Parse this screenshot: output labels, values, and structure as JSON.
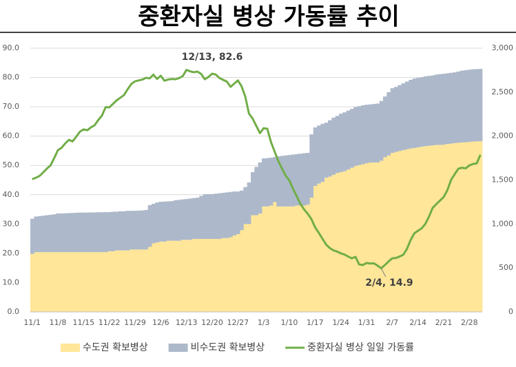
{
  "chart_data": {
    "type": "combo",
    "title": "중환자실 병상 가동률 추이",
    "stacked": true,
    "grid": true,
    "legend": "bottom",
    "categories": [
      "11/1",
      null,
      null,
      null,
      null,
      null,
      null,
      "11/8",
      null,
      null,
      null,
      null,
      null,
      null,
      "11/15",
      null,
      null,
      null,
      null,
      null,
      null,
      "11/22",
      null,
      null,
      null,
      null,
      null,
      null,
      "11/29",
      null,
      null,
      null,
      null,
      null,
      null,
      "12/6",
      null,
      null,
      null,
      null,
      null,
      null,
      "12/13",
      null,
      null,
      null,
      null,
      null,
      null,
      "12/20",
      null,
      null,
      null,
      null,
      null,
      null,
      "12/27",
      null,
      null,
      null,
      null,
      null,
      null,
      "1/3",
      null,
      null,
      null,
      null,
      null,
      null,
      "1/10",
      null,
      null,
      null,
      null,
      null,
      null,
      "1/17",
      null,
      null,
      null,
      null,
      null,
      null,
      "1/24",
      null,
      null,
      null,
      null,
      null,
      null,
      "1/31",
      null,
      null,
      null,
      null,
      null,
      null,
      "2/7",
      null,
      null,
      null,
      null,
      null,
      null,
      "2/14",
      null,
      null,
      null,
      null,
      null,
      null,
      "2/21",
      null,
      null,
      null,
      null,
      null,
      null,
      "2/28",
      null,
      null,
      null
    ],
    "series": [
      {
        "name": "수도권 확보병상",
        "type": "bar",
        "axis": "y2",
        "color": "#ffe699",
        "values": [
          660,
          680,
          680,
          680,
          680,
          680,
          680,
          680,
          680,
          680,
          680,
          680,
          680,
          680,
          680,
          680,
          680,
          680,
          680,
          680,
          680,
          690,
          690,
          700,
          700,
          700,
          700,
          710,
          710,
          710,
          710,
          710,
          740,
          780,
          790,
          800,
          800,
          810,
          810,
          810,
          810,
          820,
          820,
          820,
          830,
          830,
          830,
          830,
          830,
          830,
          830,
          830,
          840,
          840,
          850,
          870,
          885,
          930,
          1000,
          1000,
          1100,
          1100,
          1120,
          1200,
          1200,
          1210,
          1250,
          1200,
          1200,
          1200,
          1200,
          1200,
          1210,
          1210,
          1210,
          1220,
          1300,
          1433,
          1460,
          1480,
          1527,
          1540,
          1560,
          1580,
          1590,
          1600,
          1620,
          1640,
          1660,
          1670,
          1680,
          1691,
          1700,
          1700,
          1700,
          1720,
          1760,
          1780,
          1809,
          1820,
          1830,
          1840,
          1850,
          1860,
          1865,
          1872,
          1880,
          1885,
          1890,
          1895,
          1900,
          1900,
          1903,
          1910,
          1915,
          1920,
          1925,
          1928,
          1930,
          1934,
          1938,
          1940,
          1942
        ]
      },
      {
        "name": "비수도권 확보병상",
        "type": "bar",
        "axis": "y2",
        "color": "#adb9ca",
        "values": [
          400,
          405,
          410,
          415,
          420,
          425,
          430,
          440,
          440,
          442,
          444,
          446,
          448,
          450,
          450,
          450,
          452,
          452,
          454,
          454,
          455,
          445,
          450,
          440,
          445,
          445,
          450,
          440,
          441,
          442,
          445,
          450,
          474,
          450,
          455,
          453,
          455,
          448,
          450,
          460,
          465,
          460,
          464,
          470,
          465,
          470,
          490,
          509,
          510,
          510,
          515,
          520,
          515,
          520,
          515,
          500,
          485,
          450,
          420,
          472,
          490,
          550,
          580,
          546,
          550,
          545,
          512,
          570,
          575,
          580,
          585,
          590,
          585,
          590,
          595,
          589,
          720,
          666,
          660,
          660,
          626,
          640,
          650,
          650,
          665,
          670,
          670,
          670,
          670,
          670,
          670,
          666,
          660,
          665,
          670,
          680,
          690,
          720,
          736,
          740,
          750,
          760,
          770,
          780,
          790,
          790,
          790,
          795,
          795,
          795,
          800,
          805,
          806,
          805,
          805,
          805,
          810,
          817,
          820,
          822,
          822,
          822,
          822
        ]
      },
      {
        "name": "중환자실 병상 일일 가동률",
        "type": "line",
        "axis": "y",
        "color": "#70ad47",
        "values": [
          45.3,
          45.8,
          46.4,
          47.6,
          48.9,
          50.0,
          52.5,
          55.2,
          56.0,
          57.5,
          58.7,
          58.2,
          59.8,
          61.5,
          62.3,
          62.0,
          63.0,
          63.7,
          65.5,
          67.0,
          69.9,
          69.8,
          71.0,
          72.2,
          73.1,
          74.0,
          76.0,
          77.8,
          78.7,
          79.0,
          79.3,
          79.9,
          79.7,
          81.0,
          79.5,
          80.6,
          78.9,
          79.3,
          79.5,
          79.4,
          79.8,
          80.5,
          82.6,
          82.1,
          81.8,
          82.0,
          81.2,
          79.4,
          80.2,
          81.3,
          81.0,
          79.8,
          79.2,
          78.6,
          76.8,
          77.9,
          79.0,
          77.0,
          73.5,
          67.7,
          66.0,
          63.5,
          61.0,
          62.7,
          62.5,
          58.0,
          54.7,
          51.5,
          48.9,
          46.5,
          44.9,
          42.0,
          39.5,
          36.9,
          35.0,
          33.5,
          31.7,
          28.9,
          27.0,
          25.0,
          23.0,
          21.8,
          21.0,
          20.6,
          20.0,
          19.6,
          18.9,
          18.3,
          18.8,
          16.2,
          16.0,
          16.7,
          16.5,
          16.6,
          15.8,
          14.9,
          16.0,
          17.2,
          18.3,
          18.4,
          18.9,
          19.5,
          21.5,
          24.5,
          26.8,
          27.7,
          28.5,
          30.0,
          32.5,
          35.5,
          36.8,
          38.0,
          39.2,
          41.5,
          45.0,
          47.0,
          48.9,
          49.2,
          49.0,
          50.0,
          50.5,
          50.7,
          53.6
        ]
      }
    ],
    "ylim": [
      0,
      90
    ],
    "yticks": [
      {
        "value": 0,
        "label": "0.0"
      },
      {
        "value": 10,
        "label": "10.0"
      },
      {
        "value": 20,
        "label": "20.0"
      },
      {
        "value": 30,
        "label": "30.0"
      },
      {
        "value": 40,
        "label": "40.0"
      },
      {
        "value": 50,
        "label": "50.0"
      },
      {
        "value": 60,
        "label": "60.0"
      },
      {
        "value": 70,
        "label": "70.0"
      },
      {
        "value": 80,
        "label": "80.0"
      },
      {
        "value": 90,
        "label": "90.0"
      }
    ],
    "y2lim": [
      0,
      3000
    ],
    "y2ticks": [
      0,
      500,
      {
        "value": 1000,
        "label": "1,000"
      },
      {
        "value": 1500,
        "label": "1,500"
      },
      {
        "value": 2000,
        "label": "2,000"
      },
      {
        "value": 2500,
        "label": "2,500"
      },
      {
        "value": 3000,
        "label": "3,000"
      }
    ],
    "annotations": [
      {
        "text": "12/13, 82.6"
      },
      {
        "text": "2/4, 14.9"
      }
    ]
  }
}
